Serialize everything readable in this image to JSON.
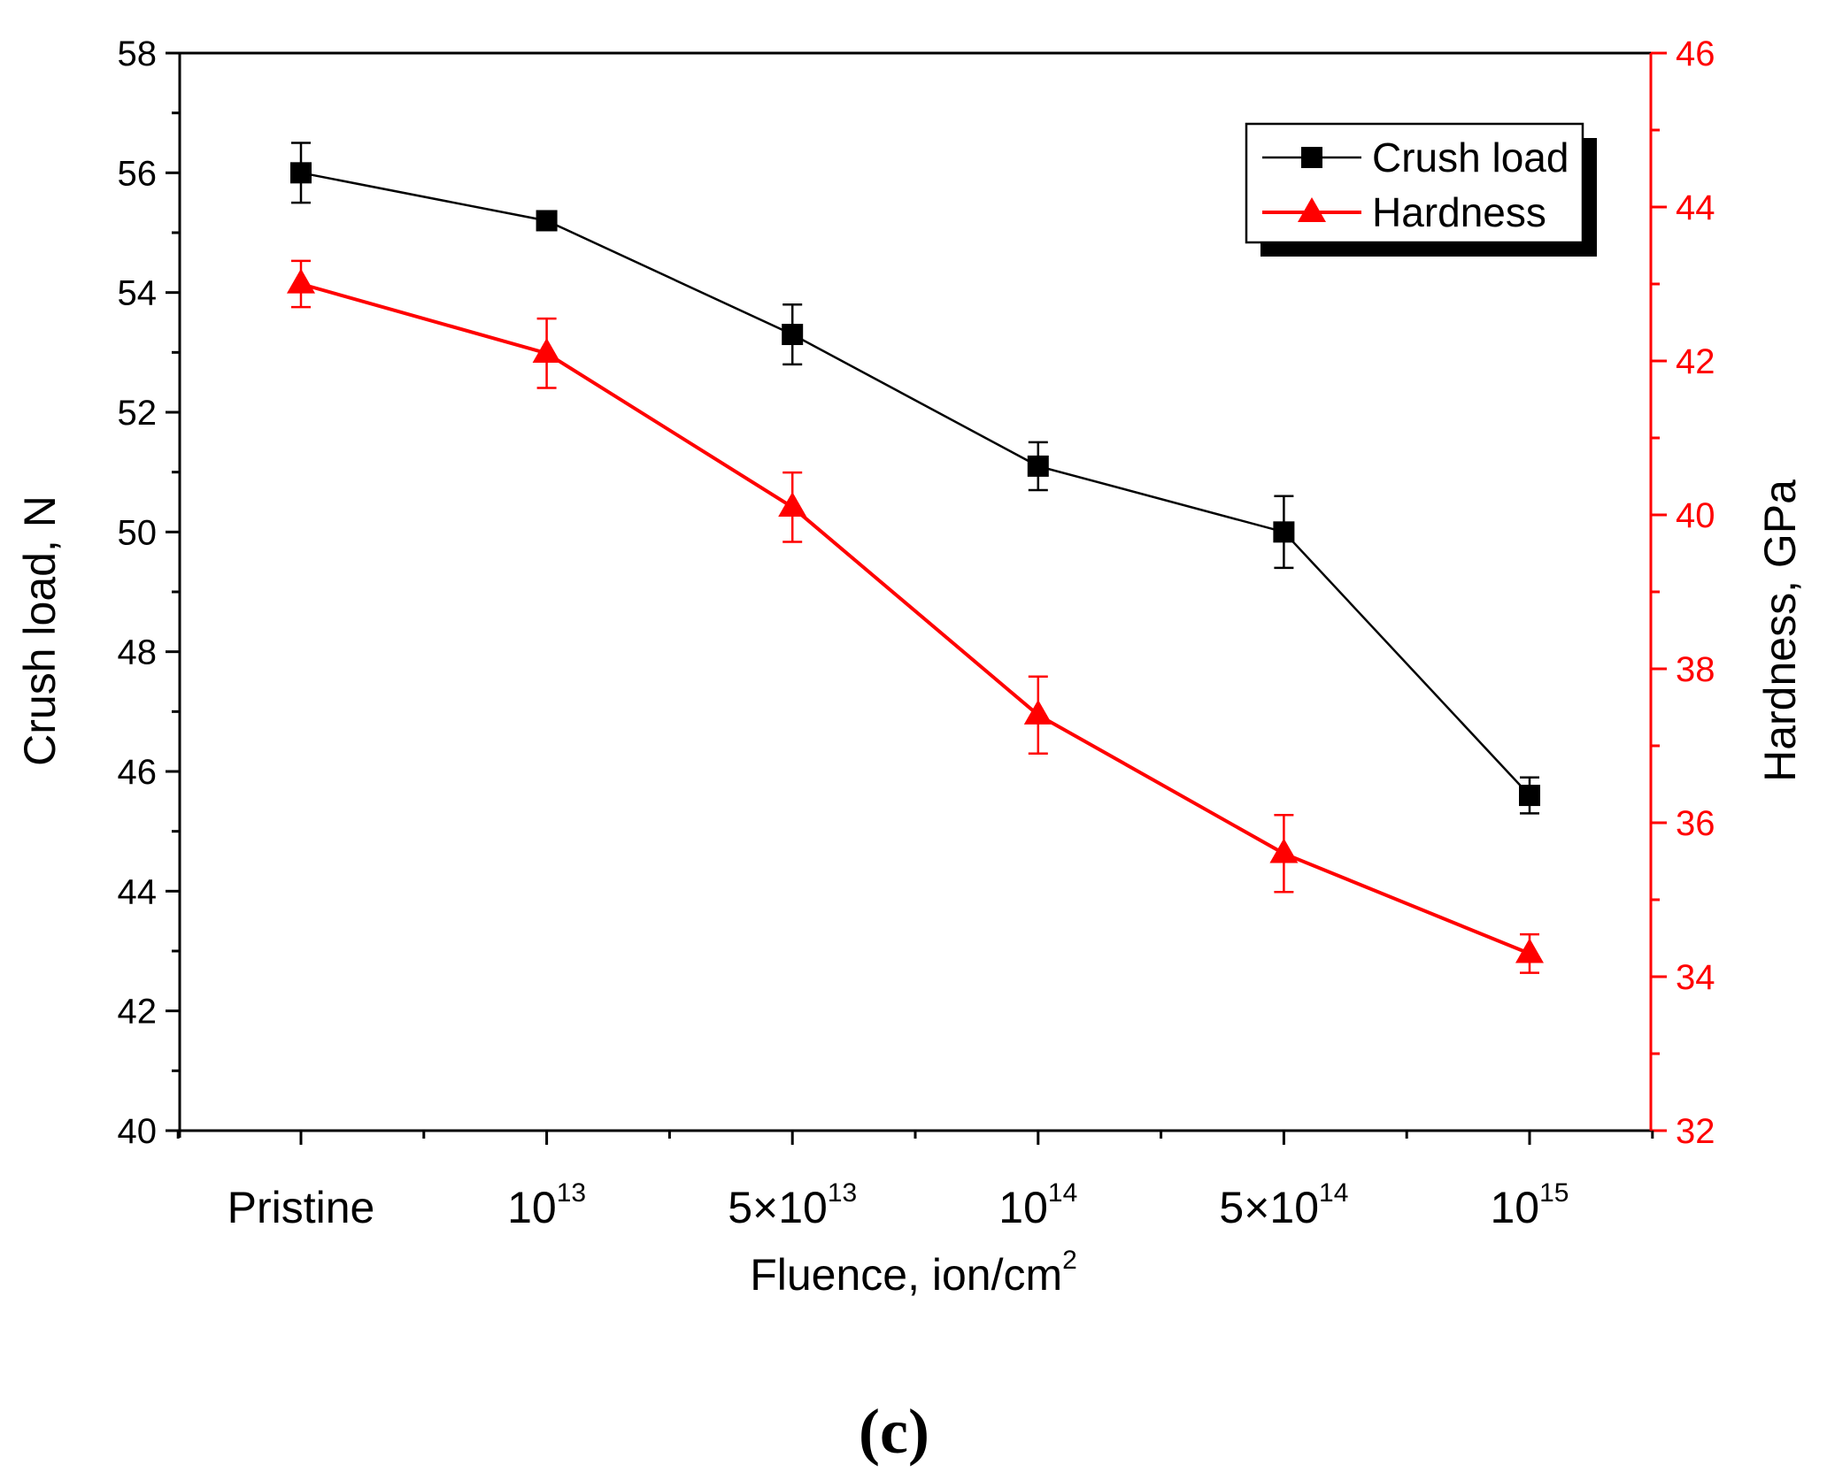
{
  "chart_data": {
    "type": "line",
    "categories": [
      {
        "base": "Pristine",
        "exp": ""
      },
      {
        "base": "10",
        "exp": "13"
      },
      {
        "base": "5×10",
        "exp": "13"
      },
      {
        "base": "10",
        "exp": "14"
      },
      {
        "base": "5×10",
        "exp": "14"
      },
      {
        "base": "10",
        "exp": "15"
      }
    ],
    "xlabel": {
      "base": "Fluence, ion/cm",
      "exp": "2"
    },
    "ylabel_left": "Crush load, N",
    "ylabel_right": "Hardness, GPa",
    "ylim_left": [
      40,
      58
    ],
    "ylim_right": [
      32,
      46
    ],
    "yticks_left": [
      "40",
      "42",
      "44",
      "46",
      "48",
      "50",
      "52",
      "54",
      "56",
      "58"
    ],
    "yticks_right": [
      "32",
      "34",
      "36",
      "38",
      "40",
      "42",
      "44",
      "46"
    ],
    "series": [
      {
        "name": "Crush load",
        "axis": "left",
        "color": "#000000",
        "marker": "square",
        "values": [
          56.0,
          55.2,
          53.3,
          51.1,
          50.0,
          45.6
        ],
        "errors": [
          0.5,
          0.1,
          0.5,
          0.4,
          0.6,
          0.3
        ]
      },
      {
        "name": "Hardness",
        "axis": "right",
        "color": "#ff0000",
        "marker": "triangle",
        "values": [
          43.0,
          42.1,
          40.1,
          37.4,
          35.6,
          34.3
        ],
        "errors": [
          0.3,
          0.45,
          0.45,
          0.5,
          0.5,
          0.25
        ]
      }
    ],
    "legend_position": "top-right",
    "panel_label": "(c)"
  }
}
